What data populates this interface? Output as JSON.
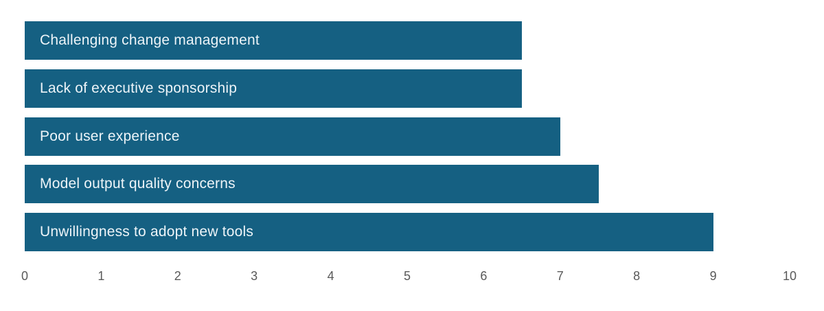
{
  "chart_data": {
    "type": "bar",
    "orientation": "horizontal",
    "title": "",
    "categories": [
      "Challenging change management",
      "Lack of executive sponsorship",
      "Poor user experience",
      "Model output quality concerns",
      "Unwillingness to adopt new tools"
    ],
    "values": [
      6.5,
      6.5,
      7,
      7.5,
      9
    ],
    "xlim": [
      0,
      10
    ],
    "x_ticks": [
      0,
      1,
      2,
      3,
      4,
      5,
      6,
      7,
      8,
      9,
      10
    ],
    "grid": false,
    "legend": false,
    "colors": {
      "bar_fill": "#156082",
      "bar_label_text": "#EDF4F8",
      "axis_tick_text": "#595959",
      "background": "#FFFFFF"
    }
  }
}
